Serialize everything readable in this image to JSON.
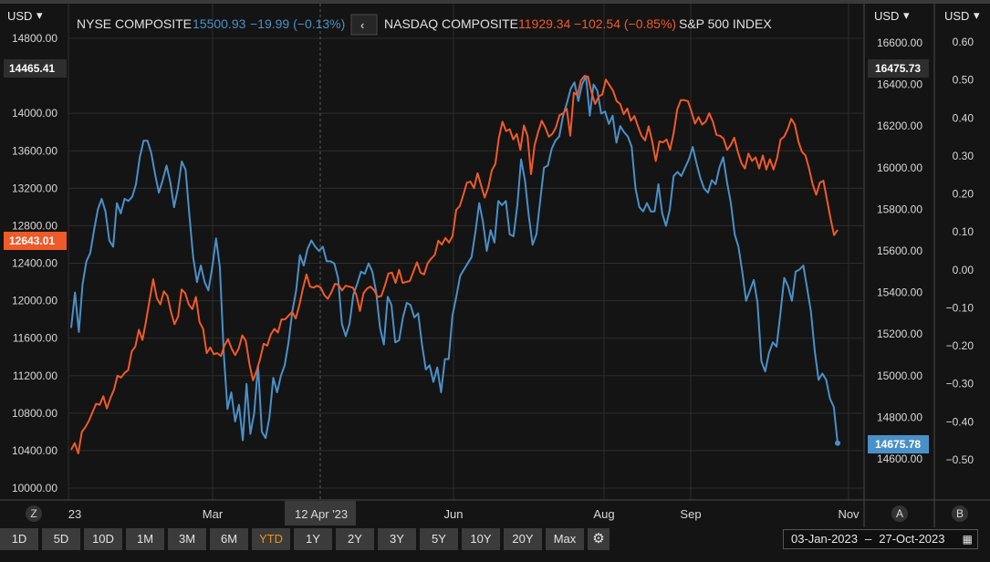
{
  "colors": {
    "nyse": "#4a90c8",
    "nasdaq": "#f05a28",
    "active_range": "#f0901e",
    "background": "#141414",
    "grid": "#2c2c2c"
  },
  "header": {
    "left_currency": "USD",
    "mid_currency": "USD",
    "right_currency": "USD",
    "nyse_name": "NYSE COMPOSITE",
    "nyse_value": "15500.93",
    "nyse_change": "−19.99 (−0.13%)",
    "nav_back": "‹",
    "nasdaq_name": "NASDAQ COMPOSITE",
    "nasdaq_value": "11929.34",
    "nasdaq_change": "−102.54 (−0.85%)",
    "sp500_name": "S&P 500 INDEX"
  },
  "axis_badges": {
    "z_label": "Z",
    "a_label": "A",
    "b_label": "B"
  },
  "tags": {
    "left_top": "14465.41",
    "left_orange": "12643.01",
    "mid_top": "16475.73",
    "mid_blue": "14675.78",
    "crosshair_date": "12 Apr '23"
  },
  "range_buttons": [
    "1D",
    "5D",
    "10D",
    "1M",
    "3M",
    "6M",
    "YTD",
    "1Y",
    "2Y",
    "3Y",
    "5Y",
    "10Y",
    "20Y",
    "Max"
  ],
  "active_range": "YTD",
  "date_range": {
    "from": "03-Jan-2023",
    "to": "27-Oct-2023",
    "separator": "–"
  },
  "chart_data": {
    "type": "line",
    "x_ticks": [
      "23",
      "Mar",
      "Jun",
      "Aug",
      "Sep",
      "Nov"
    ],
    "left_axis": {
      "ticks": [
        "14800.00",
        "14000.00",
        "13600.00",
        "13200.00",
        "12800.00",
        "12400.00",
        "12000.00",
        "11600.00",
        "11200.00",
        "10800.00",
        "10400.00",
        "10000.00"
      ],
      "range": [
        10000,
        14800
      ]
    },
    "mid_axis": {
      "ticks": [
        "16600.00",
        "16400.00",
        "16200.00",
        "16000.00",
        "15800.00",
        "15600.00",
        "15400.00",
        "15200.00",
        "15000.00",
        "14800.00",
        "14600.00"
      ],
      "range": [
        14600,
        16600
      ]
    },
    "right_axis": {
      "ticks": [
        "0.60",
        "0.50",
        "0.40",
        "0.30",
        "0.20",
        "0.10",
        "0.00",
        "−0.10",
        "−0.20",
        "−0.30",
        "−0.40",
        "−0.50"
      ],
      "range": [
        -0.5,
        0.6
      ]
    },
    "series": [
      {
        "name": "NYSE COMPOSITE",
        "axis": "mid",
        "values": [
          15230,
          15400,
          15210,
          15440,
          15550,
          15590,
          15700,
          15800,
          15850,
          15790,
          15650,
          15620,
          15830,
          15780,
          15850,
          15840,
          15860,
          15920,
          16050,
          16130,
          16130,
          16070,
          15970,
          15880,
          15940,
          16010,
          15930,
          15810,
          15900,
          16030,
          15990,
          15770,
          15570,
          15450,
          15530,
          15450,
          15410,
          15520,
          15660,
          15520,
          15110,
          14840,
          14920,
          14780,
          14860,
          14690,
          14960,
          14720,
          14820,
          15050,
          14730,
          14700,
          14800,
          14990,
          14920,
          15000,
          15050,
          15160,
          15310,
          15410,
          15580,
          15530,
          15610,
          15650,
          15620,
          15600,
          15620,
          15550,
          15550,
          15540,
          15470,
          15250,
          15190,
          15250,
          15390,
          15440,
          15500,
          15490,
          15540,
          15500,
          15400,
          15230,
          15150,
          15380,
          15340,
          15160,
          15170,
          15280,
          15350,
          15340,
          15280,
          15300,
          15150,
          15030,
          15050,
          14970,
          15040,
          14920,
          15080,
          15080,
          15290,
          15380,
          15480,
          15510,
          15540,
          15570,
          15690,
          15830,
          15740,
          15600,
          15700,
          15640,
          15840,
          15820,
          15840,
          15680,
          15670,
          15820,
          16040,
          15940,
          15770,
          15630,
          15680,
          15840,
          16000,
          16010,
          16090,
          16130,
          16150,
          16250,
          16310,
          16380,
          16410,
          16320,
          16400,
          16440,
          16250,
          16400,
          16370,
          16260,
          16270,
          16210,
          16250,
          16120,
          16200,
          16170,
          16150,
          16100,
          15900,
          15810,
          15790,
          15830,
          15790,
          15790,
          15920,
          15780,
          15720,
          15800,
          15960,
          15980,
          15960,
          16000,
          16040,
          16100,
          16020,
          15950,
          15900,
          15880,
          15940,
          15920,
          16000,
          16050,
          15930,
          15830,
          15680,
          15620,
          15500,
          15360,
          15410,
          15460,
          15350,
          15070,
          15020,
          15110,
          15160,
          15140,
          15300,
          15470,
          15430,
          15360,
          15500,
          15510,
          15530,
          15420,
          15310,
          15120,
          14980,
          15010,
          14980,
          14890,
          14850,
          14675.78
        ]
      },
      {
        "name": "NASDAQ COMPOSITE",
        "axis": "left",
        "values": [
          10410,
          10480,
          10370,
          10600,
          10650,
          10720,
          10810,
          10900,
          10890,
          10980,
          10850,
          10960,
          11050,
          11200,
          11180,
          11230,
          11260,
          11460,
          11510,
          11690,
          11580,
          11780,
          12010,
          12230,
          12030,
          11960,
          12100,
          12050,
          11880,
          11750,
          11830,
          12120,
          12080,
          11960,
          11910,
          12040,
          11770,
          11700,
          11440,
          11500,
          11430,
          11440,
          11410,
          11520,
          11590,
          11490,
          11420,
          11490,
          11630,
          11570,
          11330,
          11150,
          11250,
          11380,
          11540,
          11520,
          11640,
          11700,
          11660,
          11800,
          11800,
          11840,
          11880,
          11810,
          11950,
          12130,
          12280,
          12150,
          12140,
          12160,
          12140,
          12060,
          12020,
          12090,
          12180,
          12170,
          12110,
          12160,
          12150,
          12140,
          12060,
          11890,
          12080,
          12130,
          12150,
          12110,
          12040,
          12050,
          12160,
          12290,
          12300,
          12190,
          12330,
          12190,
          12200,
          12210,
          12310,
          12410,
          12300,
          12280,
          12400,
          12450,
          12490,
          12640,
          12600,
          12670,
          12620,
          12690,
          12970,
          13010,
          13130,
          13260,
          13270,
          13200,
          13360,
          13230,
          13100,
          13210,
          13390,
          13460,
          13740,
          13910,
          13810,
          13830,
          13720,
          13780,
          13610,
          13870,
          13760,
          13350,
          13660,
          13800,
          13920,
          13850,
          13750,
          13780,
          13850,
          13980,
          14000,
          14050,
          13760,
          14220,
          14190,
          14350,
          14400,
          14390,
          14220,
          14100,
          14180,
          14200,
          14360,
          14300,
          14240,
          14130,
          14100,
          13990,
          14050,
          13920,
          13970,
          13860,
          13760,
          13710,
          13860,
          13700,
          13490,
          13700,
          13690,
          13720,
          13610,
          13790,
          14040,
          14140,
          14140,
          14130,
          14020,
          13890,
          13960,
          13880,
          13910,
          14000,
          13910,
          13770,
          13760,
          13730,
          13610,
          13660,
          13740,
          13590,
          13470,
          13410,
          13570,
          13490,
          13530,
          13410,
          13550,
          13400,
          13510,
          13400,
          13520,
          13720,
          13750,
          13830,
          13940,
          13880,
          13700,
          13590,
          13550,
          13410,
          13240,
          13130,
          13260,
          13280,
          13080,
          12880,
          12700,
          12755
        ]
      }
    ],
    "crosshair_x_label": "12 Apr '23",
    "grid": true
  }
}
